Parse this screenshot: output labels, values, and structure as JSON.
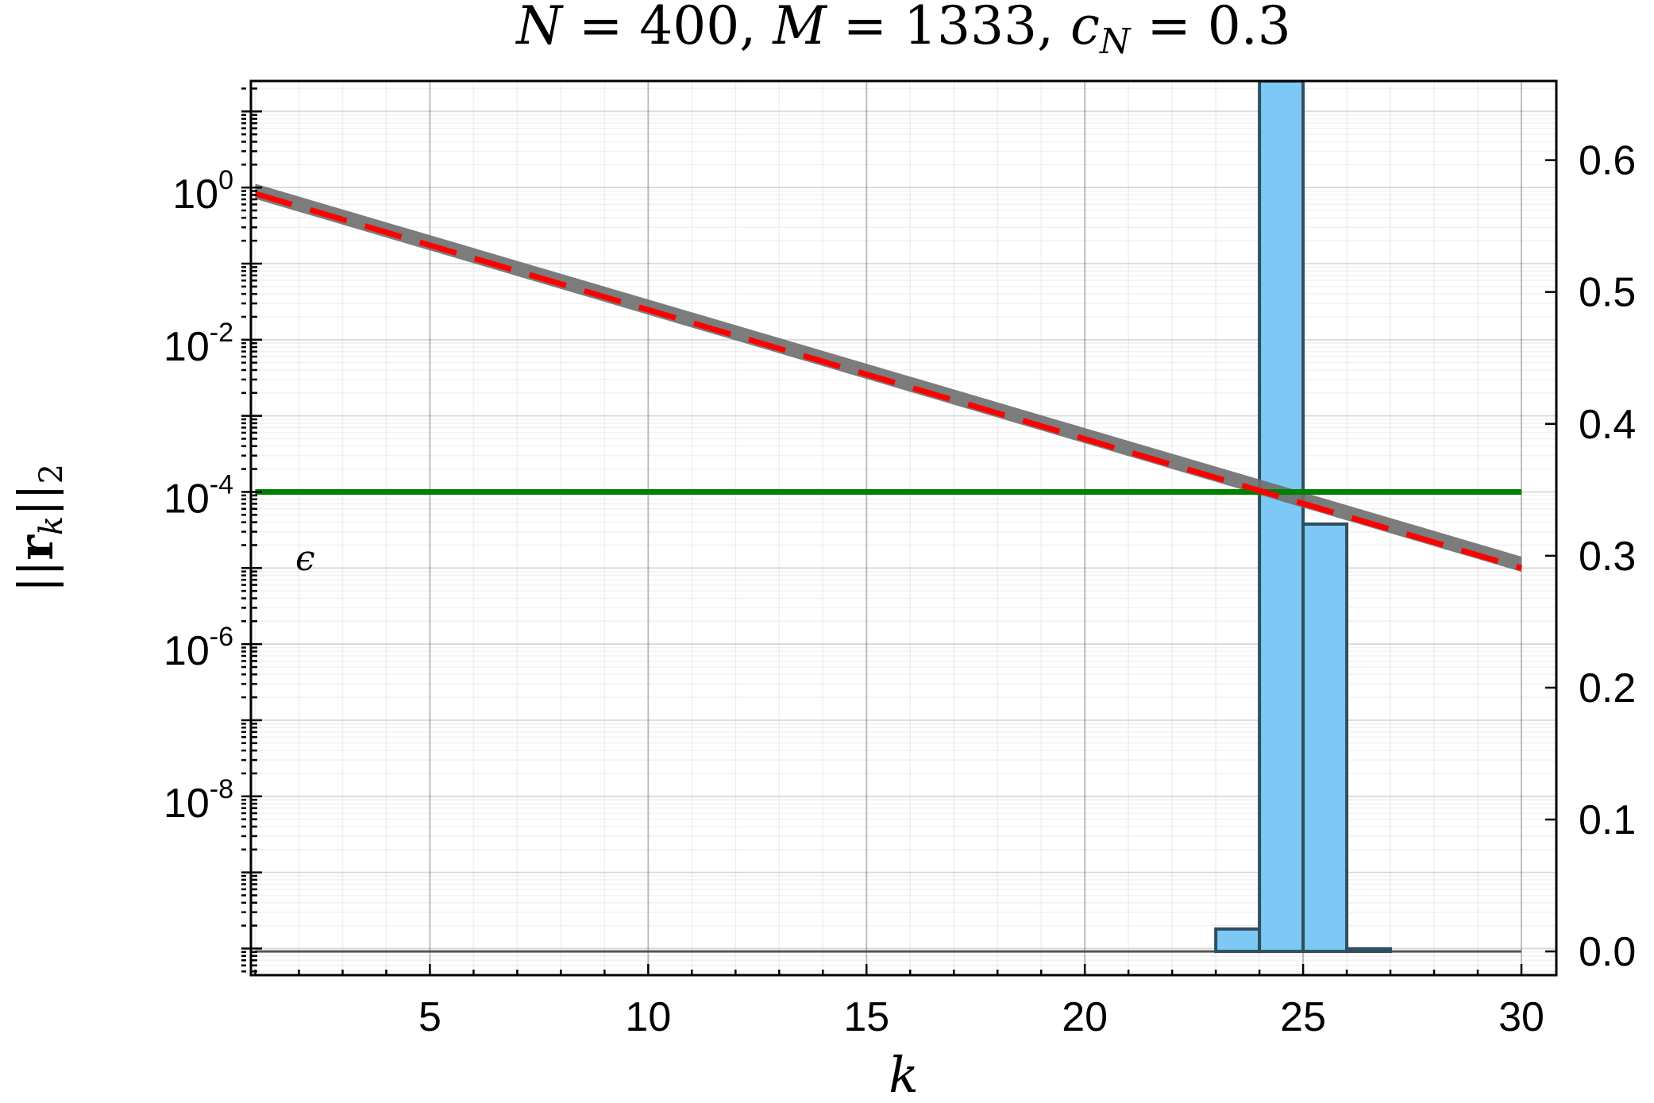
{
  "chart_data": {
    "type": "bar",
    "title_parts": {
      "n_sym": "N",
      "n_val": " = 400, ",
      "m_sym": "M",
      "m_val": " = 1333, ",
      "c_sym": "c",
      "c_sub": "N",
      "c_val": " = 0.3"
    },
    "xlabel": "k",
    "ylabel_left": "||r_k||_2",
    "epsilon_label": "ϵ",
    "x_axis": {
      "range": [
        0.9,
        30.8
      ],
      "ticks": [
        5,
        10,
        15,
        20,
        25,
        30
      ],
      "tick_labels": [
        "5",
        "10",
        "15",
        "20",
        "25",
        "30"
      ]
    },
    "y_left_axis": {
      "scale": "log",
      "range_log10": [
        -10.35,
        1.4
      ],
      "ticks_log10": [
        0,
        -2,
        -4,
        -6,
        -8
      ],
      "tick_labels": [
        {
          "base": "10",
          "exp": "0"
        },
        {
          "base": "10",
          "exp": "-2"
        },
        {
          "base": "10",
          "exp": "-4"
        },
        {
          "base": "10",
          "exp": "-6"
        },
        {
          "base": "10",
          "exp": "-8"
        }
      ]
    },
    "y_right_axis": {
      "scale": "linear",
      "range": [
        -0.018,
        0.66
      ],
      "ticks": [
        0.0,
        0.1,
        0.2,
        0.3,
        0.4,
        0.5,
        0.6
      ],
      "tick_labels": [
        "0.0",
        "0.1",
        "0.2",
        "0.3",
        "0.4",
        "0.5",
        "0.6"
      ]
    },
    "residual_band": {
      "x_start": 1,
      "x_end": 30,
      "log10_start": -0.05,
      "log10_end": -4.95,
      "band_half_width_log10": 0.1,
      "color": "#6e6e6e"
    },
    "fit_line": {
      "x_start": 1,
      "x_end": 30,
      "log10_start": -0.08,
      "log10_end": -5.0,
      "color": "#ff0000",
      "style": "dashed"
    },
    "epsilon_line": {
      "log10": -4,
      "x_start": 1,
      "x_end": 30,
      "color": "#008000"
    },
    "histogram": {
      "color": "#7ec8f5",
      "edge": "#2f4f5f",
      "bars": [
        {
          "k": 23,
          "value": 0.017
        },
        {
          "k": 24,
          "value": 0.66
        },
        {
          "k": 25,
          "value": 0.324
        },
        {
          "k": 26,
          "value": 0.002
        }
      ],
      "baseline_range": [
        1,
        30
      ]
    }
  }
}
